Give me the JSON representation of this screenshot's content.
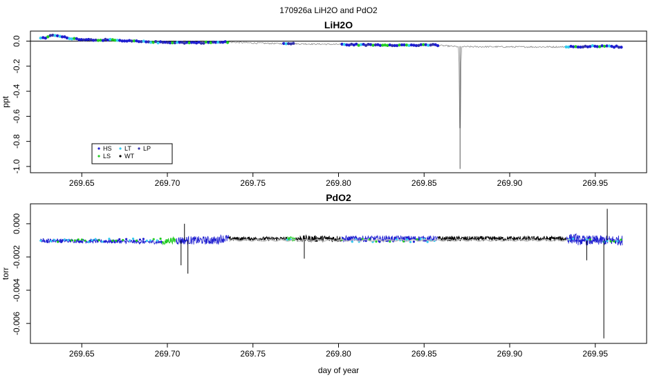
{
  "title": "170926a   LiH2O and PdO2",
  "colors": {
    "HS": "#1f1fd0",
    "LS": "#22cc22",
    "LT": "#33ccee",
    "WT": "#000000",
    "LP": "#3333aa",
    "grey": "#888888"
  },
  "chart_data": [
    {
      "type": "line",
      "title": "LiH2O",
      "ylabel": "ppt",
      "xlabel": "",
      "xlim": [
        269.62,
        269.98
      ],
      "ylim": [
        -1.05,
        0.08
      ],
      "x_ticks": [
        269.65,
        269.7,
        269.75,
        269.8,
        269.85,
        269.9,
        269.95
      ],
      "x_tick_labels": [
        "269.65",
        "269.70",
        "269.75",
        "269.80",
        "269.85",
        "269.90",
        "269.95"
      ],
      "y_ticks": [
        0.0,
        -0.2,
        -0.4,
        -0.6,
        -0.8,
        -1.0
      ],
      "y_tick_labels": [
        "0.0",
        "-0.2",
        "-0.4",
        "-0.6",
        "-0.8",
        "-1.0"
      ],
      "hline": 0.0,
      "legend": {
        "placement": "bottom-left",
        "entries": [
          {
            "label": "HS",
            "color_key": "HS"
          },
          {
            "label": "LT",
            "color_key": "LT"
          },
          {
            "label": "LP",
            "color_key": "LP"
          },
          {
            "label": "LS",
            "color_key": "LS"
          },
          {
            "label": "WT",
            "color_key": "WT"
          }
        ]
      },
      "series": [
        {
          "x": [
            269.626,
            269.63,
            269.633,
            269.636,
            269.64,
            269.645,
            269.65,
            269.655,
            269.66,
            269.665,
            269.67,
            269.675,
            269.68,
            269.685,
            269.69,
            269.695,
            269.7,
            269.705,
            269.71,
            269.715,
            269.72,
            269.725,
            269.73,
            269.735,
            269.74,
            269.75,
            269.76,
            269.77,
            269.78,
            269.79,
            269.8,
            269.805,
            269.81,
            269.815,
            269.82,
            269.825,
            269.83,
            269.835,
            269.84,
            269.845,
            269.85,
            269.855,
            269.86,
            269.865,
            269.87,
            269.8705,
            269.871,
            269.8715,
            269.872,
            269.875,
            269.88,
            269.89,
            269.9,
            269.91,
            269.92,
            269.93,
            269.935,
            269.94,
            269.945,
            269.95,
            269.955,
            269.96,
            269.965
          ],
          "y": [
            0.02,
            0.03,
            0.05,
            0.04,
            0.03,
            0.02,
            0.015,
            0.01,
            0.01,
            0.01,
            0.005,
            0.0,
            0.0,
            -0.005,
            -0.005,
            -0.01,
            -0.01,
            -0.01,
            -0.012,
            -0.012,
            -0.012,
            -0.01,
            -0.01,
            -0.008,
            -0.01,
            -0.015,
            -0.018,
            -0.02,
            -0.022,
            -0.024,
            -0.026,
            -0.028,
            -0.028,
            -0.03,
            -0.03,
            -0.03,
            -0.03,
            -0.032,
            -0.032,
            -0.033,
            -0.033,
            -0.03,
            -0.035,
            -0.04,
            -0.045,
            -0.2,
            -1.02,
            -0.2,
            -0.045,
            -0.045,
            -0.045,
            -0.045,
            -0.046,
            -0.046,
            -0.046,
            -0.046,
            -0.045,
            -0.048,
            -0.045,
            -0.04,
            -0.042,
            -0.044,
            -0.045
          ]
        }
      ]
    },
    {
      "type": "line",
      "title": "PdO2",
      "ylabel": "torr",
      "xlabel": "day of year",
      "xlim": [
        269.62,
        269.98
      ],
      "ylim": [
        -0.0072,
        0.0012
      ],
      "x_ticks": [
        269.65,
        269.7,
        269.75,
        269.8,
        269.85,
        269.9,
        269.95
      ],
      "x_tick_labels": [
        "269.65",
        "269.70",
        "269.75",
        "269.80",
        "269.85",
        "269.90",
        "269.95"
      ],
      "y_ticks": [
        0.0,
        -0.002,
        -0.004,
        -0.006
      ],
      "y_tick_labels": [
        "0.000",
        "-0.002",
        "-0.004",
        "-0.006"
      ],
      "series": [
        {
          "x": [
            269.626,
            269.64,
            269.66,
            269.68,
            269.695,
            269.7,
            269.705,
            269.708,
            269.71,
            269.712,
            269.715,
            269.72,
            269.73,
            269.74,
            269.75,
            269.76,
            269.77,
            269.775,
            269.778,
            269.78,
            269.785,
            269.79,
            269.8,
            269.81,
            269.82,
            269.83,
            269.835,
            269.84,
            269.85,
            269.86,
            269.865,
            269.87,
            269.88,
            269.89,
            269.9,
            269.91,
            269.92,
            269.93,
            269.935,
            269.94,
            269.945,
            269.95,
            269.955,
            269.957,
            269.96,
            269.965
          ],
          "y": [
            -0.001,
            -0.001,
            -0.0011,
            -0.0011,
            -0.0011,
            -0.001,
            -0.0012,
            -0.0025,
            -0.0,
            -0.003,
            -0.0012,
            -0.0012,
            -0.0011,
            -0.001,
            -0.0009,
            -0.0009,
            -0.0009,
            -0.0015,
            -0.0002,
            -0.0021,
            -0.0012,
            -0.001,
            -0.001,
            -0.001,
            -0.0011,
            -0.0002,
            -0.0013,
            -0.001,
            -0.001,
            -0.001,
            -0.0003,
            -0.001,
            -0.0009,
            -0.0011,
            -0.0011,
            -0.0011,
            -0.0011,
            -0.001,
            -0.0017,
            -0.001,
            -0.0022,
            -0.001,
            -0.0069,
            0.0009,
            -0.001,
            -0.001
          ]
        }
      ]
    }
  ]
}
